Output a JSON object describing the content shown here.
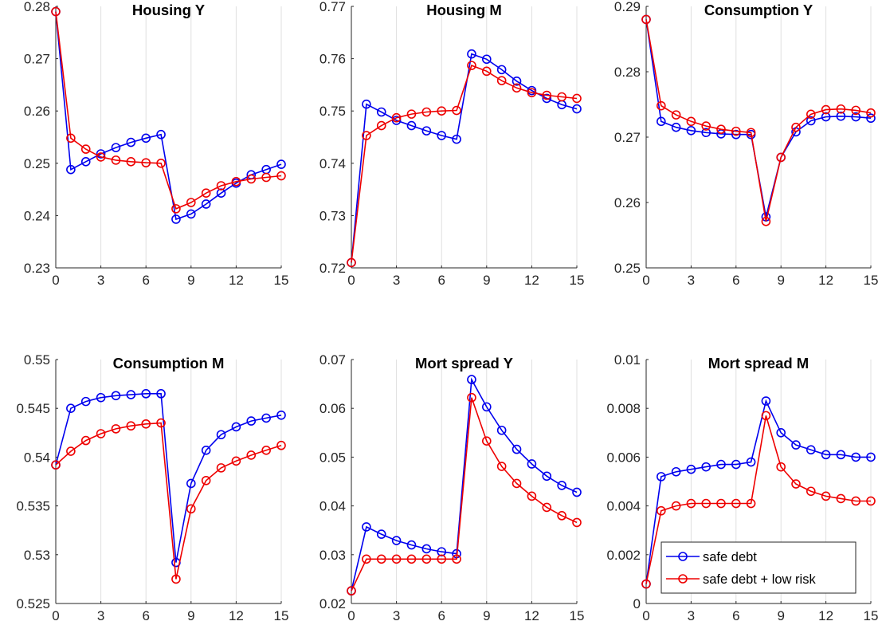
{
  "colors": {
    "series_a": "#0000EE",
    "series_b": "#EE0000",
    "grid": "#DFDFDF",
    "axis": "#262626"
  },
  "legend": {
    "placement": "bottom-right of last panel",
    "entries": [
      "safe debt",
      "safe debt + low risk"
    ]
  },
  "chart_data": [
    {
      "type": "line",
      "title": "Housing Y",
      "xlabel": "",
      "ylabel": "",
      "x": [
        0,
        1,
        2,
        3,
        4,
        5,
        6,
        7,
        8,
        9,
        10,
        11,
        12,
        13,
        14,
        15
      ],
      "xlim": [
        0,
        15
      ],
      "xticks": [
        0,
        3,
        6,
        9,
        12,
        15
      ],
      "ylim": [
        0.23,
        0.28
      ],
      "yticks": [
        "0.23",
        "0.24",
        "0.25",
        "0.26",
        "0.27",
        "0.28"
      ],
      "grid": "vertical",
      "series": [
        {
          "name": "safe debt",
          "values": [
            0.279,
            0.2488,
            0.2503,
            0.2518,
            0.253,
            0.254,
            0.2548,
            0.2555,
            0.2393,
            0.2403,
            0.2422,
            0.2443,
            0.2462,
            0.2478,
            0.2488,
            0.2498
          ]
        },
        {
          "name": "safe debt + low risk",
          "values": [
            0.279,
            0.2548,
            0.2527,
            0.2512,
            0.2506,
            0.2503,
            0.2501,
            0.25,
            0.2413,
            0.2425,
            0.2443,
            0.2457,
            0.2465,
            0.247,
            0.2473,
            0.2476
          ]
        }
      ]
    },
    {
      "type": "line",
      "title": "Housing M",
      "xlabel": "",
      "ylabel": "",
      "x": [
        0,
        1,
        2,
        3,
        4,
        5,
        6,
        7,
        8,
        9,
        10,
        11,
        12,
        13,
        14,
        15
      ],
      "xlim": [
        0,
        15
      ],
      "xticks": [
        0,
        3,
        6,
        9,
        12,
        15
      ],
      "ylim": [
        0.72,
        0.77
      ],
      "yticks": [
        "0.72",
        "0.73",
        "0.74",
        "0.75",
        "0.76",
        "0.77"
      ],
      "grid": "vertical",
      "series": [
        {
          "name": "safe debt",
          "values": [
            0.721,
            0.7513,
            0.7498,
            0.7482,
            0.7472,
            0.7462,
            0.7453,
            0.7446,
            0.7609,
            0.7599,
            0.7579,
            0.7557,
            0.7539,
            0.7524,
            0.7512,
            0.7504
          ]
        },
        {
          "name": "safe debt + low risk",
          "values": [
            0.721,
            0.7453,
            0.7472,
            0.7487,
            0.7494,
            0.7498,
            0.75,
            0.7501,
            0.7587,
            0.7576,
            0.7558,
            0.7544,
            0.7535,
            0.753,
            0.7527,
            0.7524
          ]
        }
      ]
    },
    {
      "type": "line",
      "title": "Consumption Y",
      "xlabel": "",
      "ylabel": "",
      "x": [
        0,
        1,
        2,
        3,
        4,
        5,
        6,
        7,
        8,
        9,
        10,
        11,
        12,
        13,
        14,
        15
      ],
      "xlim": [
        0,
        15
      ],
      "xticks": [
        0,
        3,
        6,
        9,
        12,
        15
      ],
      "ylim": [
        0.25,
        0.29
      ],
      "yticks": [
        "0.25",
        "0.26",
        "0.27",
        "0.28",
        "0.29"
      ],
      "grid": "vertical",
      "series": [
        {
          "name": "safe debt",
          "values": [
            0.288,
            0.2724,
            0.2715,
            0.271,
            0.2707,
            0.2705,
            0.2704,
            0.2704,
            0.2578,
            0.2669,
            0.2708,
            0.2725,
            0.2731,
            0.2732,
            0.2731,
            0.2729
          ]
        },
        {
          "name": "safe debt + low risk",
          "values": [
            0.288,
            0.2748,
            0.2734,
            0.2724,
            0.2717,
            0.2712,
            0.2709,
            0.2707,
            0.2571,
            0.2669,
            0.2715,
            0.2735,
            0.2742,
            0.2743,
            0.2741,
            0.2737
          ]
        }
      ]
    },
    {
      "type": "line",
      "title": "Consumption M",
      "xlabel": "",
      "ylabel": "",
      "x": [
        0,
        1,
        2,
        3,
        4,
        5,
        6,
        7,
        8,
        9,
        10,
        11,
        12,
        13,
        14,
        15
      ],
      "xlim": [
        0,
        15
      ],
      "xticks": [
        0,
        3,
        6,
        9,
        12,
        15
      ],
      "ylim": [
        0.525,
        0.55
      ],
      "yticks": [
        "0.525",
        "0.53",
        "0.535",
        "0.54",
        "0.545",
        "0.55"
      ],
      "grid": "vertical",
      "series": [
        {
          "name": "safe debt",
          "values": [
            0.5392,
            0.545,
            0.5457,
            0.5461,
            0.5463,
            0.5464,
            0.5465,
            0.5465,
            0.5292,
            0.5373,
            0.5407,
            0.5423,
            0.5431,
            0.5437,
            0.544,
            0.5443
          ]
        },
        {
          "name": "safe debt + low risk",
          "values": [
            0.5392,
            0.5406,
            0.5417,
            0.5424,
            0.5429,
            0.5432,
            0.5434,
            0.5435,
            0.5275,
            0.5347,
            0.5376,
            0.5389,
            0.5396,
            0.5402,
            0.5407,
            0.5412
          ]
        }
      ]
    },
    {
      "type": "line",
      "title": "Mort spread Y",
      "xlabel": "",
      "ylabel": "",
      "x": [
        0,
        1,
        2,
        3,
        4,
        5,
        6,
        7,
        8,
        9,
        10,
        11,
        12,
        13,
        14,
        15
      ],
      "xlim": [
        0,
        15
      ],
      "xticks": [
        0,
        3,
        6,
        9,
        12,
        15
      ],
      "ylim": [
        0.02,
        0.07
      ],
      "yticks": [
        "0.02",
        "0.03",
        "0.04",
        "0.05",
        "0.06",
        "0.07"
      ],
      "grid": "vertical",
      "series": [
        {
          "name": "safe debt",
          "values": [
            0.0226,
            0.0357,
            0.0342,
            0.0329,
            0.032,
            0.0312,
            0.0306,
            0.0302,
            0.0659,
            0.0603,
            0.0555,
            0.0516,
            0.0486,
            0.0461,
            0.0442,
            0.0428
          ]
        },
        {
          "name": "safe debt + low risk",
          "values": [
            0.0226,
            0.0291,
            0.0291,
            0.0291,
            0.0291,
            0.0291,
            0.0291,
            0.0291,
            0.0622,
            0.0533,
            0.0481,
            0.0446,
            0.042,
            0.0397,
            0.038,
            0.0366
          ]
        }
      ]
    },
    {
      "type": "line",
      "title": "Mort spread M",
      "xlabel": "",
      "ylabel": "",
      "x": [
        0,
        1,
        2,
        3,
        4,
        5,
        6,
        7,
        8,
        9,
        10,
        11,
        12,
        13,
        14,
        15
      ],
      "xlim": [
        0,
        15
      ],
      "xticks": [
        0,
        3,
        6,
        9,
        12,
        15
      ],
      "ylim": [
        0,
        0.01
      ],
      "yticks": [
        "0",
        "0.002",
        "0.004",
        "0.006",
        "0.008",
        "0.01"
      ],
      "grid": "vertical",
      "legend": true,
      "series": [
        {
          "name": "safe debt",
          "values": [
            0.0008,
            0.0052,
            0.0054,
            0.0055,
            0.0056,
            0.0057,
            0.0057,
            0.0058,
            0.0083,
            0.007,
            0.0065,
            0.0063,
            0.0061,
            0.0061,
            0.006,
            0.006
          ]
        },
        {
          "name": "safe debt + low risk",
          "values": [
            0.0008,
            0.0038,
            0.004,
            0.0041,
            0.0041,
            0.0041,
            0.0041,
            0.0041,
            0.0077,
            0.0056,
            0.0049,
            0.0046,
            0.0044,
            0.0043,
            0.0042,
            0.0042
          ]
        }
      ]
    }
  ]
}
